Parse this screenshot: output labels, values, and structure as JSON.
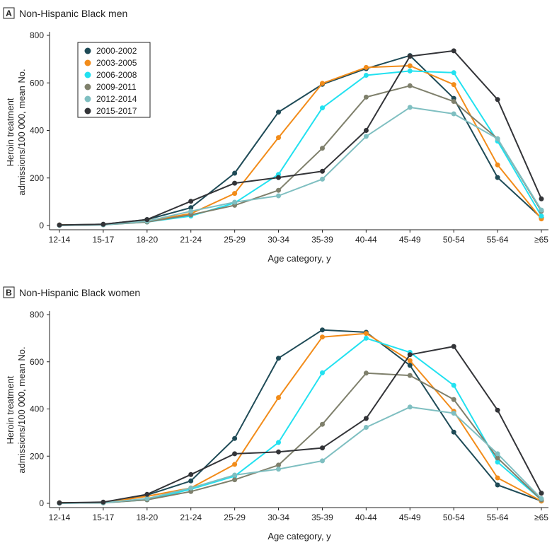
{
  "colors": {
    "2000-2002": "#1f4b57",
    "2003-2005": "#f28c1a",
    "2006-2008": "#22e1f0",
    "2009-2011": "#7f806c",
    "2012-2014": "#7fbfc1",
    "2015-2017": "#333438"
  },
  "chart_data": [
    {
      "type": "line",
      "panel_letter": "A",
      "title": "Non-Hispanic Black men",
      "xlabel": "Age category, y",
      "ylabel": [
        "Heroin treatment",
        "admissions/100 000, mean No."
      ],
      "ylim": [
        0,
        800
      ],
      "yticks": [
        0,
        200,
        400,
        600,
        800
      ],
      "categories": [
        "12-14",
        "15-17",
        "18-20",
        "21-24",
        "25-29",
        "30-34",
        "35-39",
        "40-44",
        "45-49",
        "50-54",
        "55-64",
        "≥65"
      ],
      "legend_position": "top-left",
      "series": [
        {
          "name": "2000-2002",
          "values": [
            2,
            5,
            25,
            75,
            220,
            477,
            594,
            660,
            715,
            535,
            202,
            32
          ]
        },
        {
          "name": "2003-2005",
          "values": [
            2,
            4,
            20,
            50,
            135,
            370,
            598,
            665,
            672,
            593,
            255,
            28
          ]
        },
        {
          "name": "2006-2008",
          "values": [
            1,
            3,
            15,
            40,
            95,
            215,
            495,
            632,
            650,
            643,
            355,
            40
          ]
        },
        {
          "name": "2009-2011",
          "values": [
            1,
            3,
            15,
            45,
            85,
            148,
            325,
            540,
            588,
            522,
            365,
            60
          ]
        },
        {
          "name": "2012-2014",
          "values": [
            1,
            3,
            18,
            60,
            98,
            125,
            195,
            375,
            497,
            470,
            365,
            65
          ]
        },
        {
          "name": "2015-2017",
          "values": [
            2,
            5,
            25,
            102,
            178,
            202,
            228,
            400,
            712,
            735,
            530,
            112
          ]
        }
      ]
    },
    {
      "type": "line",
      "panel_letter": "B",
      "title": "Non-Hispanic Black women",
      "xlabel": "Age category, y",
      "ylabel": [
        "Heroin treatment",
        "admissions/100 000, mean No."
      ],
      "ylim": [
        0,
        800
      ],
      "yticks": [
        0,
        200,
        400,
        600,
        800
      ],
      "categories": [
        "12-14",
        "15-17",
        "18-20",
        "21-24",
        "25-29",
        "30-34",
        "35-39",
        "40-44",
        "45-49",
        "50-54",
        "55-64",
        "≥65"
      ],
      "series": [
        {
          "name": "2000-2002",
          "values": [
            2,
            3,
            35,
            95,
            275,
            615,
            735,
            725,
            585,
            302,
            78,
            10
          ]
        },
        {
          "name": "2003-2005",
          "values": [
            2,
            2,
            30,
            65,
            165,
            448,
            705,
            720,
            605,
            390,
            108,
            10
          ]
        },
        {
          "name": "2006-2008",
          "values": [
            1,
            2,
            15,
            60,
            115,
            258,
            553,
            700,
            640,
            500,
            175,
            15
          ]
        },
        {
          "name": "2009-2011",
          "values": [
            1,
            2,
            15,
            50,
            100,
            162,
            335,
            552,
            542,
            440,
            192,
            15
          ]
        },
        {
          "name": "2012-2014",
          "values": [
            1,
            2,
            20,
            65,
            120,
            145,
            180,
            322,
            408,
            382,
            210,
            20
          ]
        },
        {
          "name": "2015-2017",
          "values": [
            2,
            5,
            38,
            122,
            210,
            218,
            235,
            360,
            630,
            665,
            395,
            43
          ]
        }
      ]
    }
  ]
}
